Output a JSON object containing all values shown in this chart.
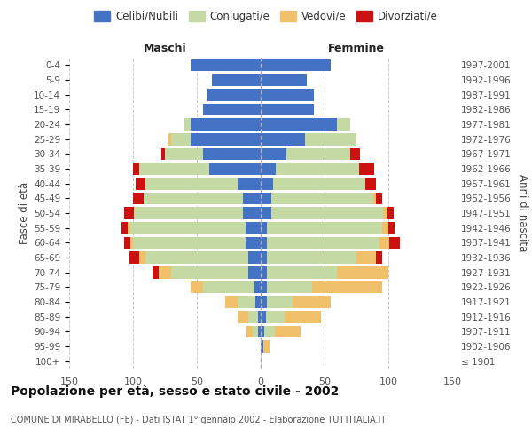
{
  "age_groups": [
    "100+",
    "95-99",
    "90-94",
    "85-89",
    "80-84",
    "75-79",
    "70-74",
    "65-69",
    "60-64",
    "55-59",
    "50-54",
    "45-49",
    "40-44",
    "35-39",
    "30-34",
    "25-29",
    "20-24",
    "15-19",
    "10-14",
    "5-9",
    "0-4"
  ],
  "birth_years": [
    "≤ 1901",
    "1902-1906",
    "1907-1911",
    "1912-1916",
    "1917-1921",
    "1922-1926",
    "1927-1931",
    "1932-1936",
    "1937-1941",
    "1942-1946",
    "1947-1951",
    "1952-1956",
    "1957-1961",
    "1962-1966",
    "1967-1971",
    "1972-1976",
    "1977-1981",
    "1982-1986",
    "1987-1991",
    "1992-1996",
    "1997-2001"
  ],
  "colors": {
    "celibi": "#4472c4",
    "coniugati": "#c5d9a4",
    "vedovi": "#f0c06a",
    "divorziati": "#cc1111"
  },
  "males": {
    "celibi": [
      0,
      0,
      2,
      2,
      4,
      5,
      10,
      10,
      12,
      12,
      14,
      14,
      18,
      40,
      45,
      55,
      55,
      45,
      42,
      38,
      55
    ],
    "coniugati": [
      0,
      0,
      4,
      8,
      14,
      40,
      60,
      80,
      88,
      90,
      85,
      78,
      72,
      55,
      30,
      15,
      5,
      0,
      0,
      0,
      0
    ],
    "vedovi": [
      0,
      0,
      5,
      8,
      10,
      10,
      10,
      5,
      2,
      2,
      0,
      0,
      0,
      0,
      0,
      2,
      0,
      0,
      0,
      0,
      0
    ],
    "divorziati": [
      0,
      0,
      0,
      0,
      0,
      0,
      5,
      8,
      5,
      5,
      8,
      8,
      8,
      5,
      3,
      0,
      0,
      0,
      0,
      0,
      0
    ]
  },
  "females": {
    "celibi": [
      0,
      2,
      3,
      4,
      5,
      5,
      5,
      5,
      5,
      5,
      8,
      8,
      10,
      12,
      20,
      35,
      60,
      42,
      42,
      36,
      55
    ],
    "coniugati": [
      0,
      0,
      8,
      15,
      20,
      35,
      55,
      70,
      88,
      90,
      88,
      80,
      72,
      65,
      50,
      40,
      10,
      0,
      0,
      0,
      0
    ],
    "vedovi": [
      0,
      5,
      20,
      28,
      30,
      55,
      40,
      15,
      8,
      5,
      3,
      2,
      0,
      0,
      0,
      0,
      0,
      0,
      0,
      0,
      0
    ],
    "divorziati": [
      0,
      0,
      0,
      0,
      0,
      0,
      0,
      5,
      8,
      5,
      5,
      5,
      8,
      12,
      8,
      0,
      0,
      0,
      0,
      0,
      0
    ]
  },
  "title": "Popolazione per età, sesso e stato civile - 2002",
  "subtitle": "COMUNE DI MIRABELLO (FE) - Dati ISTAT 1° gennaio 2002 - Elaborazione TUTTITALIA.IT",
  "xlabel_left": "Maschi",
  "xlabel_right": "Femmine",
  "ylabel_left": "Fasce di età",
  "ylabel_right": "Anni di nascita",
  "xlim": 150,
  "legend_labels": [
    "Celibi/Nubili",
    "Coniugati/e",
    "Vedovi/e",
    "Divorziati/e"
  ],
  "bg_color": "#ffffff",
  "grid_color": "#cccccc"
}
